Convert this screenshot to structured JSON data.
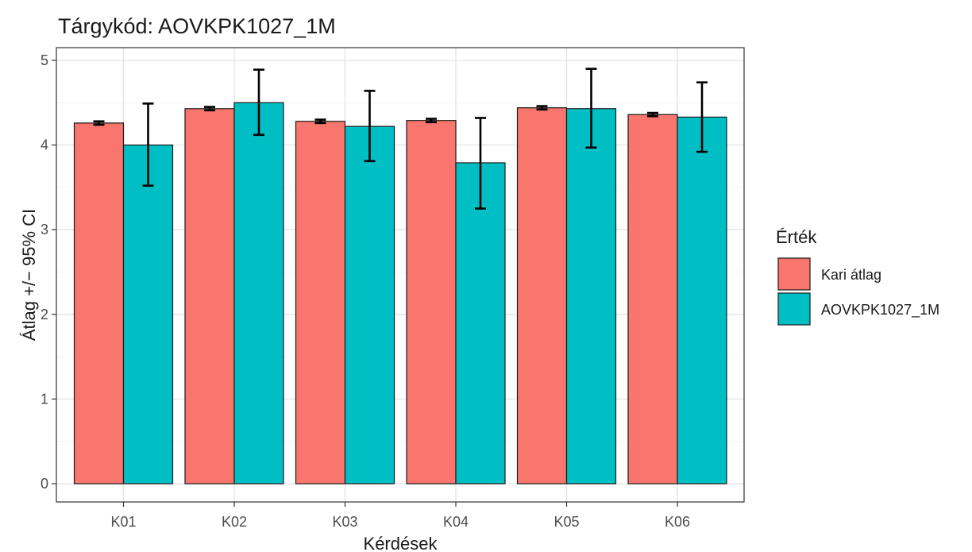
{
  "chart_data": {
    "type": "bar",
    "title": "Tárgykód:  AOVKPK1027_1M",
    "xlabel": "Kérdések",
    "ylabel": "Átlag +/− 95% CI",
    "ylim": [
      0,
      5
    ],
    "yticks": [
      "0",
      "1",
      "2",
      "3",
      "4",
      "5"
    ],
    "categories": [
      "K01",
      "K02",
      "K03",
      "K04",
      "K05",
      "K06"
    ],
    "legend_title": "Érték",
    "legend_position": "right",
    "grid": true,
    "series": [
      {
        "name": "Kari átlag",
        "color": "#F8766D",
        "values": [
          4.26,
          4.43,
          4.28,
          4.29,
          4.44,
          4.36
        ],
        "ci_low": [
          4.24,
          4.41,
          4.26,
          4.27,
          4.42,
          4.34
        ],
        "ci_high": [
          4.28,
          4.45,
          4.3,
          4.31,
          4.46,
          4.38
        ]
      },
      {
        "name": "AOVKPK1027_1M",
        "color": "#00BFC4",
        "values": [
          4.0,
          4.5,
          4.22,
          3.79,
          4.43,
          4.33
        ],
        "ci_low": [
          3.52,
          4.12,
          3.81,
          3.25,
          3.97,
          3.92
        ],
        "ci_high": [
          4.49,
          4.89,
          4.64,
          4.32,
          4.9,
          4.74
        ]
      }
    ]
  }
}
